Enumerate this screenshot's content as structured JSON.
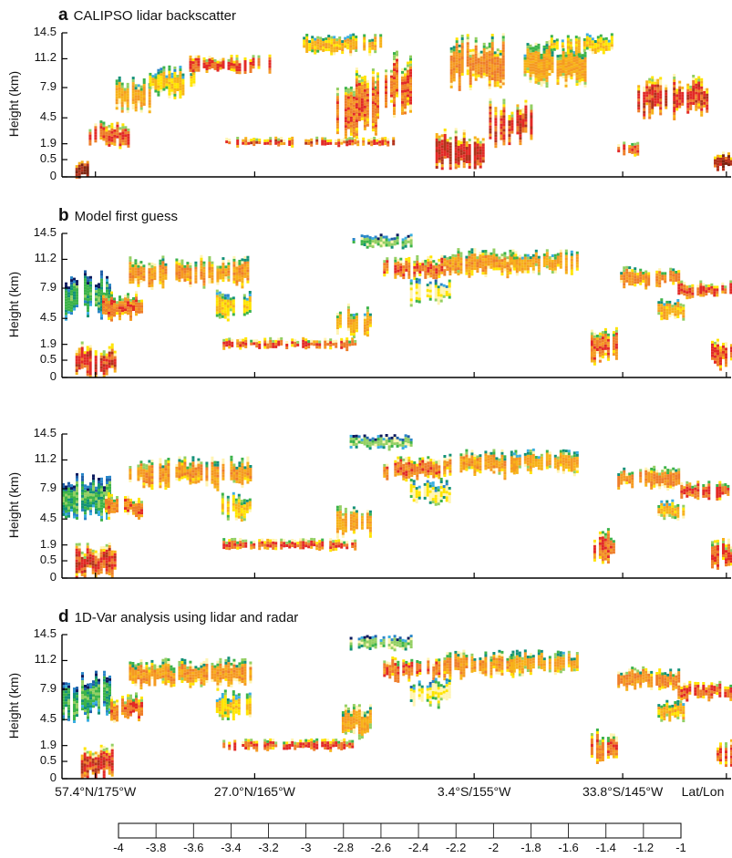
{
  "chart_data": [
    {
      "type": "heatmap",
      "letter": "a",
      "title": "CALIPSO lidar backscatter",
      "ylabel": "Height (km)",
      "yticks": [
        "14.5",
        "11.2",
        "7.9",
        "4.5",
        "1.9",
        "0.5",
        "0"
      ],
      "blobs": [
        {
          "x": [
            0.02,
            0.04
          ],
          "y": [
            0.0,
            0.12
          ],
          "v": -1.1
        },
        {
          "x": [
            0.04,
            0.1
          ],
          "y": [
            0.2,
            0.4
          ],
          "v": -1.6
        },
        {
          "x": [
            0.08,
            0.13
          ],
          "y": [
            0.45,
            0.7
          ],
          "v": -2.0
        },
        {
          "x": [
            0.13,
            0.2
          ],
          "y": [
            0.55,
            0.78
          ],
          "v": -2.2
        },
        {
          "x": [
            0.19,
            0.31
          ],
          "y": [
            0.72,
            0.85
          ],
          "v": -1.6
        },
        {
          "x": [
            0.24,
            0.5
          ],
          "y": [
            0.22,
            0.28
          ],
          "v": -1.5
        },
        {
          "x": [
            0.36,
            0.48
          ],
          "y": [
            0.85,
            1.0
          ],
          "v": -2.1
        },
        {
          "x": [
            0.41,
            0.47
          ],
          "y": [
            0.25,
            0.8
          ],
          "v": -1.7
        },
        {
          "x": [
            0.47,
            0.52
          ],
          "y": [
            0.4,
            0.9
          ],
          "v": -1.7
        },
        {
          "x": [
            0.55,
            0.63
          ],
          "y": [
            0.05,
            0.35
          ],
          "v": -1.4
        },
        {
          "x": [
            0.58,
            0.66
          ],
          "y": [
            0.6,
            1.0
          ],
          "v": -1.8
        },
        {
          "x": [
            0.63,
            0.7
          ],
          "y": [
            0.2,
            0.55
          ],
          "v": -1.5
        },
        {
          "x": [
            0.69,
            0.78
          ],
          "y": [
            0.62,
            0.95
          ],
          "v": -2.0
        },
        {
          "x": [
            0.73,
            0.82
          ],
          "y": [
            0.85,
            1.0
          ],
          "v": -2.2
        },
        {
          "x": [
            0.83,
            0.86
          ],
          "y": [
            0.15,
            0.25
          ],
          "v": -1.6
        },
        {
          "x": [
            0.86,
            0.97
          ],
          "y": [
            0.4,
            0.72
          ],
          "v": -1.5
        },
        {
          "x": [
            0.97,
            1.0
          ],
          "y": [
            0.05,
            0.18
          ],
          "v": -1.2
        }
      ]
    },
    {
      "type": "heatmap",
      "letter": "b",
      "title": "Model first guess",
      "ylabel": "Height (km)",
      "yticks": [
        "14.5",
        "11.2",
        "7.9",
        "4.5",
        "1.9",
        "0.5",
        "0"
      ],
      "blobs": [
        {
          "x": [
            0.0,
            0.07
          ],
          "y": [
            0.4,
            0.75
          ],
          "v": -2.9
        },
        {
          "x": [
            0.02,
            0.08
          ],
          "y": [
            0.0,
            0.25
          ],
          "v": -1.5
        },
        {
          "x": [
            0.06,
            0.12
          ],
          "y": [
            0.4,
            0.6
          ],
          "v": -1.7
        },
        {
          "x": [
            0.1,
            0.28
          ],
          "y": [
            0.62,
            0.85
          ],
          "v": -1.9
        },
        {
          "x": [
            0.23,
            0.28
          ],
          "y": [
            0.4,
            0.62
          ],
          "v": -2.2
        },
        {
          "x": [
            0.24,
            0.44
          ],
          "y": [
            0.2,
            0.28
          ],
          "v": -1.6
        },
        {
          "x": [
            0.41,
            0.46
          ],
          "y": [
            0.28,
            0.52
          ],
          "v": -2.0
        },
        {
          "x": [
            0.43,
            0.52
          ],
          "y": [
            0.9,
            1.0
          ],
          "v": -2.7
        },
        {
          "x": [
            0.48,
            0.57
          ],
          "y": [
            0.68,
            0.85
          ],
          "v": -1.7
        },
        {
          "x": [
            0.52,
            0.58
          ],
          "y": [
            0.5,
            0.7
          ],
          "v": -2.4
        },
        {
          "x": [
            0.57,
            0.68
          ],
          "y": [
            0.7,
            0.9
          ],
          "v": -1.9
        },
        {
          "x": [
            0.67,
            0.77
          ],
          "y": [
            0.72,
            0.9
          ],
          "v": -2.0
        },
        {
          "x": [
            0.79,
            0.83
          ],
          "y": [
            0.1,
            0.35
          ],
          "v": -1.7
        },
        {
          "x": [
            0.83,
            0.92
          ],
          "y": [
            0.62,
            0.78
          ],
          "v": -1.8
        },
        {
          "x": [
            0.89,
            0.93
          ],
          "y": [
            0.4,
            0.55
          ],
          "v": -2.1
        },
        {
          "x": [
            0.92,
            1.0
          ],
          "y": [
            0.55,
            0.68
          ],
          "v": -1.6
        },
        {
          "x": [
            0.97,
            1.0
          ],
          "y": [
            0.05,
            0.3
          ],
          "v": -1.6
        }
      ]
    },
    {
      "type": "heatmap",
      "letter": "",
      "title": "",
      "ylabel": "Height (km)",
      "yticks": [
        "14.5",
        "11.2",
        "7.9",
        "4.5",
        "1.9",
        "0.5",
        "0"
      ],
      "blobs": [
        {
          "x": [
            0.0,
            0.07
          ],
          "y": [
            0.4,
            0.75
          ],
          "v": -2.9
        },
        {
          "x": [
            0.02,
            0.08
          ],
          "y": [
            0.0,
            0.25
          ],
          "v": -1.5
        },
        {
          "x": [
            0.06,
            0.12
          ],
          "y": [
            0.4,
            0.6
          ],
          "v": -1.7
        },
        {
          "x": [
            0.1,
            0.28
          ],
          "y": [
            0.62,
            0.85
          ],
          "v": -1.9
        },
        {
          "x": [
            0.23,
            0.28
          ],
          "y": [
            0.4,
            0.62
          ],
          "v": -2.2
        },
        {
          "x": [
            0.24,
            0.44
          ],
          "y": [
            0.2,
            0.28
          ],
          "v": -1.6
        },
        {
          "x": [
            0.41,
            0.46
          ],
          "y": [
            0.28,
            0.52
          ],
          "v": -2.0
        },
        {
          "x": [
            0.43,
            0.52
          ],
          "y": [
            0.9,
            1.0
          ],
          "v": -2.7
        },
        {
          "x": [
            0.48,
            0.57
          ],
          "y": [
            0.68,
            0.85
          ],
          "v": -1.7
        },
        {
          "x": [
            0.52,
            0.58
          ],
          "y": [
            0.5,
            0.7
          ],
          "v": -2.4
        },
        {
          "x": [
            0.57,
            0.68
          ],
          "y": [
            0.7,
            0.9
          ],
          "v": -1.9
        },
        {
          "x": [
            0.67,
            0.77
          ],
          "y": [
            0.72,
            0.9
          ],
          "v": -2.0
        },
        {
          "x": [
            0.79,
            0.83
          ],
          "y": [
            0.1,
            0.35
          ],
          "v": -1.7
        },
        {
          "x": [
            0.83,
            0.92
          ],
          "y": [
            0.62,
            0.78
          ],
          "v": -1.8
        },
        {
          "x": [
            0.89,
            0.93
          ],
          "y": [
            0.4,
            0.55
          ],
          "v": -2.1
        },
        {
          "x": [
            0.92,
            1.0
          ],
          "y": [
            0.55,
            0.68
          ],
          "v": -1.6
        },
        {
          "x": [
            0.97,
            1.0
          ],
          "y": [
            0.05,
            0.3
          ],
          "v": -1.6
        }
      ]
    },
    {
      "type": "heatmap",
      "letter": "d",
      "title": "1D-Var analysis using lidar and radar",
      "ylabel": "Height (km)",
      "yticks": [
        "14.5",
        "11.2",
        "7.9",
        "4.5",
        "1.9",
        "0.5",
        "0"
      ],
      "xticks": [
        "57.4°N/175°W",
        "27.0°N/165°W",
        "3.4°S/155°W",
        "33.8°S/145°W",
        "Lat/Lon"
      ],
      "blobs": [
        {
          "x": [
            0.0,
            0.07
          ],
          "y": [
            0.4,
            0.75
          ],
          "v": -2.9
        },
        {
          "x": [
            0.02,
            0.08
          ],
          "y": [
            0.0,
            0.25
          ],
          "v": -1.5
        },
        {
          "x": [
            0.06,
            0.12
          ],
          "y": [
            0.4,
            0.6
          ],
          "v": -1.7
        },
        {
          "x": [
            0.1,
            0.28
          ],
          "y": [
            0.62,
            0.85
          ],
          "v": -1.9
        },
        {
          "x": [
            0.23,
            0.28
          ],
          "y": [
            0.4,
            0.62
          ],
          "v": -2.2
        },
        {
          "x": [
            0.24,
            0.44
          ],
          "y": [
            0.2,
            0.28
          ],
          "v": -1.6
        },
        {
          "x": [
            0.41,
            0.46
          ],
          "y": [
            0.28,
            0.52
          ],
          "v": -2.0
        },
        {
          "x": [
            0.43,
            0.52
          ],
          "y": [
            0.9,
            1.0
          ],
          "v": -2.7
        },
        {
          "x": [
            0.48,
            0.57
          ],
          "y": [
            0.68,
            0.85
          ],
          "v": -1.7
        },
        {
          "x": [
            0.52,
            0.58
          ],
          "y": [
            0.5,
            0.7
          ],
          "v": -2.4
        },
        {
          "x": [
            0.57,
            0.68
          ],
          "y": [
            0.7,
            0.9
          ],
          "v": -1.9
        },
        {
          "x": [
            0.67,
            0.77
          ],
          "y": [
            0.72,
            0.9
          ],
          "v": -2.0
        },
        {
          "x": [
            0.79,
            0.83
          ],
          "y": [
            0.1,
            0.35
          ],
          "v": -1.7
        },
        {
          "x": [
            0.83,
            0.92
          ],
          "y": [
            0.62,
            0.78
          ],
          "v": -1.8
        },
        {
          "x": [
            0.89,
            0.93
          ],
          "y": [
            0.4,
            0.55
          ],
          "v": -2.1
        },
        {
          "x": [
            0.92,
            1.0
          ],
          "y": [
            0.55,
            0.68
          ],
          "v": -1.6
        },
        {
          "x": [
            0.97,
            1.0
          ],
          "y": [
            0.05,
            0.3
          ],
          "v": -1.6
        }
      ]
    }
  ],
  "colorbar": {
    "ticks": [
      "-4",
      "-3.8",
      "-3.6",
      "-3.4",
      "-3.2",
      "-3",
      "-2.8",
      "-2.6",
      "-2.4",
      "-2.2",
      "-2",
      "-1.8",
      "-1.6",
      "-1.4",
      "-1.2",
      "-1"
    ],
    "colors": [
      "#0b1a5e",
      "#1f5fa8",
      "#2a86c8",
      "#3aaee0",
      "#139178",
      "#3cb34a",
      "#93cf63",
      "#fff4b2",
      "#ffe400",
      "#f7b21a",
      "#f59a22",
      "#ee7d2a",
      "#e22a26",
      "#b3321b",
      "#7d2410"
    ]
  }
}
